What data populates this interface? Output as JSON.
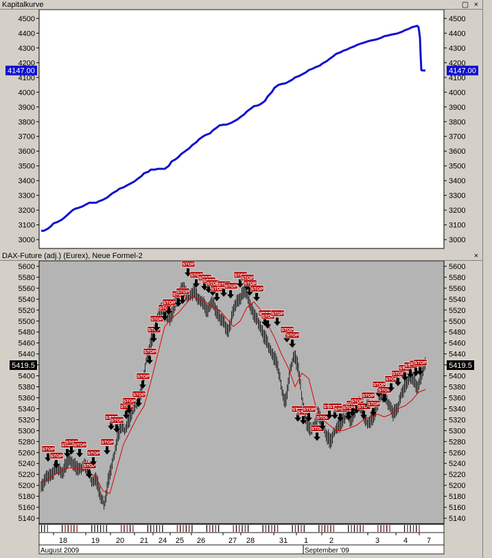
{
  "window": {
    "top_title": "Kapitalkurve",
    "bottom_title": "DAX-Future (adj.) (Eurex),  Neue Formel-2",
    "close_glyph": "×",
    "restore_glyph": "▢"
  },
  "colors": {
    "equity_line": "#1010d0",
    "equity_bg": "#ffffff",
    "price_bg": "#b4b4b4",
    "moving_average": "#e00000",
    "stop_label_bg": "#b00000",
    "value_tag_top": "#1010d0",
    "value_tag_bottom": "#000000"
  },
  "chart_data": [
    {
      "type": "line",
      "title": "Kapitalkurve",
      "ylim": [
        2940,
        4560
      ],
      "yticks": [
        3000,
        3100,
        3200,
        3300,
        3400,
        3500,
        3600,
        3700,
        3800,
        3900,
        4000,
        4100,
        4200,
        4300,
        4400,
        4500
      ],
      "current_value_label": "4147.00",
      "current_value": 4147,
      "series": [
        {
          "x": [
            0,
            4,
            10,
            14,
            18,
            24,
            30,
            34,
            40,
            46,
            50,
            54,
            60,
            66,
            70,
            76,
            80,
            84,
            90,
            96,
            100,
            104,
            110,
            114,
            120,
            126,
            130,
            136,
            140,
            146,
            150,
            156,
            160,
            166,
            170,
            176,
            180,
            186,
            190,
            196,
            200,
            204,
            210,
            216,
            220,
            226,
            230,
            236,
            240,
            246,
            250,
            256,
            260,
            266,
            270,
            276,
            280,
            286,
            290,
            296,
            300,
            306,
            310,
            316,
            320,
            326,
            330,
            336,
            340,
            346,
            350,
            356,
            360,
            366,
            370,
            376,
            380,
            386,
            390,
            396,
            400,
            406,
            410,
            416,
            420,
            426,
            430,
            436,
            440,
            446,
            450,
            456,
            460,
            466,
            470,
            476,
            480,
            486,
            490,
            496,
            500,
            506,
            510,
            516,
            520,
            526,
            530,
            536,
            540,
            544,
            548,
            550,
            552,
            553,
            554,
            556,
            560
          ],
          "values": [
            3060,
            3060,
            3075,
            3090,
            3110,
            3120,
            3135,
            3150,
            3175,
            3200,
            3210,
            3215,
            3225,
            3240,
            3250,
            3250,
            3250,
            3260,
            3270,
            3285,
            3300,
            3315,
            3330,
            3345,
            3355,
            3370,
            3380,
            3395,
            3410,
            3430,
            3450,
            3460,
            3475,
            3475,
            3480,
            3480,
            3480,
            3500,
            3530,
            3545,
            3560,
            3580,
            3600,
            3620,
            3640,
            3660,
            3680,
            3700,
            3710,
            3720,
            3740,
            3760,
            3775,
            3780,
            3780,
            3790,
            3800,
            3815,
            3830,
            3850,
            3870,
            3890,
            3905,
            3910,
            3920,
            3940,
            3970,
            4000,
            4030,
            4050,
            4055,
            4060,
            4070,
            4085,
            4100,
            4110,
            4120,
            4135,
            4150,
            4160,
            4170,
            4180,
            4195,
            4210,
            4225,
            4245,
            4260,
            4270,
            4280,
            4290,
            4300,
            4310,
            4320,
            4330,
            4335,
            4345,
            4350,
            4355,
            4360,
            4370,
            4380,
            4385,
            4390,
            4395,
            4400,
            4410,
            4420,
            4430,
            4440,
            4445,
            4450,
            4440,
            4370,
            4250,
            4150,
            4147,
            4147
          ]
        }
      ]
    },
    {
      "type": "line",
      "title": "DAX-Future (adj.) (Eurex),  Neue Formel-2",
      "ylim": [
        5130,
        5610
      ],
      "yticks": [
        5140,
        5160,
        5180,
        5200,
        5220,
        5240,
        5260,
        5280,
        5300,
        5320,
        5340,
        5360,
        5380,
        5400,
        5420,
        5440,
        5460,
        5480,
        5500,
        5520,
        5540,
        5560,
        5580,
        5600
      ],
      "current_value_label": "5419.5",
      "current_value": 5419.5,
      "xticks": [
        "18",
        "19",
        "20",
        "21",
        "24",
        "25",
        "26",
        "27",
        "28",
        "31",
        "1",
        "2",
        "3",
        "4",
        "7"
      ],
      "months": [
        "August 2009",
        "September '09"
      ],
      "stop_label": "STOP",
      "price_anchors": {
        "x": [
          0,
          10,
          20,
          30,
          38,
          45,
          50,
          56,
          62,
          68,
          74,
          80,
          86,
          92,
          98,
          104,
          110,
          116,
          122,
          128,
          134,
          140,
          146,
          152,
          158,
          164,
          170,
          176,
          182,
          188,
          194,
          200,
          206,
          212,
          218,
          224,
          230,
          236,
          242,
          248,
          254,
          260,
          266,
          272,
          278,
          284,
          290,
          296,
          302,
          308,
          314,
          320,
          326,
          332,
          338,
          344,
          350,
          356,
          362,
          368,
          374,
          380,
          386,
          392,
          398,
          404,
          410,
          416,
          422,
          428,
          434,
          440,
          446,
          452,
          458,
          464,
          470,
          476,
          482,
          488,
          494,
          500,
          506,
          512,
          518,
          524,
          530,
          536,
          542,
          548,
          554,
          560
        ],
        "values": [
          5200,
          5215,
          5230,
          5225,
          5240,
          5245,
          5235,
          5225,
          5240,
          5230,
          5205,
          5215,
          5180,
          5165,
          5210,
          5240,
          5280,
          5310,
          5300,
          5320,
          5340,
          5350,
          5370,
          5420,
          5450,
          5480,
          5510,
          5520,
          5510,
          5500,
          5530,
          5545,
          5560,
          5550,
          5545,
          5555,
          5540,
          5530,
          5520,
          5535,
          5520,
          5510,
          5495,
          5480,
          5510,
          5530,
          5545,
          5555,
          5540,
          5520,
          5500,
          5490,
          5470,
          5450,
          5440,
          5420,
          5380,
          5350,
          5400,
          5440,
          5420,
          5360,
          5320,
          5300,
          5310,
          5330,
          5310,
          5290,
          5280,
          5300,
          5310,
          5320,
          5330,
          5320,
          5340,
          5350,
          5330,
          5310,
          5320,
          5340,
          5360,
          5370,
          5350,
          5330,
          5340,
          5360,
          5380,
          5400,
          5390,
          5380,
          5400,
          5420
        ]
      },
      "moving_average_anchors": {
        "x": [
          0,
          20,
          40,
          60,
          80,
          90,
          100,
          110,
          120,
          130,
          140,
          150,
          160,
          170,
          180,
          190,
          200,
          210,
          220,
          230,
          240,
          250,
          260,
          270,
          280,
          290,
          300,
          310,
          320,
          330,
          340,
          350,
          360,
          370,
          380,
          390,
          400,
          410,
          420,
          430,
          440,
          450,
          460,
          470,
          480,
          490,
          500,
          510,
          520,
          530,
          540,
          550,
          560
        ],
        "values": [
          5205,
          5220,
          5232,
          5230,
          5215,
          5190,
          5185,
          5230,
          5275,
          5300,
          5325,
          5345,
          5390,
          5440,
          5490,
          5505,
          5515,
          5530,
          5545,
          5540,
          5535,
          5525,
          5520,
          5505,
          5490,
          5500,
          5525,
          5535,
          5520,
          5495,
          5470,
          5440,
          5415,
          5380,
          5405,
          5395,
          5345,
          5320,
          5310,
          5300,
          5300,
          5305,
          5310,
          5320,
          5325,
          5330,
          5325,
          5330,
          5340,
          5345,
          5355,
          5370,
          5375
        ]
      },
      "stop_markers_x": [
        10,
        22,
        38,
        44,
        56,
        70,
        76,
        96,
        102,
        110,
        124,
        128,
        142,
        148,
        158,
        164,
        168,
        180,
        186,
        200,
        206,
        214,
        226,
        238,
        244,
        250,
        256,
        266,
        276,
        290,
        300,
        304,
        314,
        326,
        330,
        344,
        358,
        366,
        374,
        382,
        390,
        402,
        410,
        420,
        428,
        436,
        448,
        454,
        460,
        470,
        476,
        484,
        492,
        500,
        510,
        520,
        530,
        538,
        546,
        552
      ],
      "stop_markers_price": [
        5262,
        5250,
        5270,
        5275,
        5270,
        5232,
        5255,
        5275,
        5320,
        5315,
        5340,
        5350,
        5362,
        5395,
        5440,
        5480,
        5500,
        5520,
        5530,
        5545,
        5550,
        5600,
        5580,
        5575,
        5570,
        5565,
        5555,
        5563,
        5560,
        5580,
        5575,
        5565,
        5555,
        5510,
        5505,
        5510,
        5480,
        5470,
        5335,
        5330,
        5335,
        5300,
        5320,
        5340,
        5340,
        5335,
        5338,
        5345,
        5350,
        5340,
        5360,
        5345,
        5380,
        5370,
        5390,
        5400,
        5410,
        5415,
        5418,
        5420
      ]
    }
  ]
}
